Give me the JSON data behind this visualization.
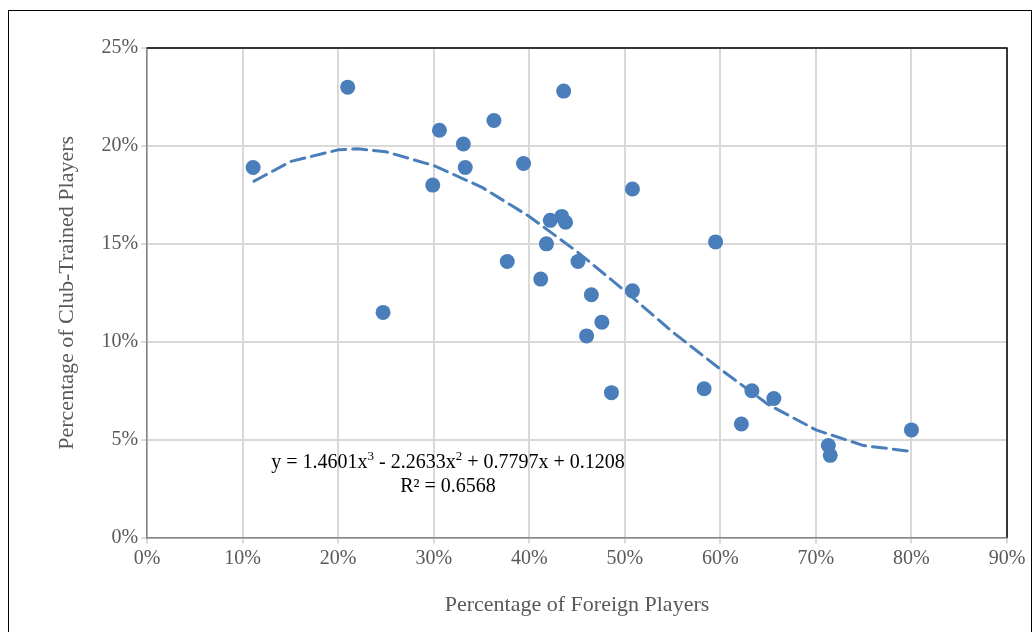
{
  "chart_data": {
    "type": "scatter",
    "xlabel": "Percentage of Foreign Players",
    "ylabel": "Percentage of Club-Trained Players",
    "xlim": [
      0,
      90
    ],
    "xticks": [
      {
        "value": 0,
        "label": "0%"
      },
      {
        "value": 10,
        "label": "10%"
      },
      {
        "value": 20,
        "label": "20%"
      },
      {
        "value": 30,
        "label": "30%"
      },
      {
        "value": 40,
        "label": "40%"
      },
      {
        "value": 50,
        "label": "50%"
      },
      {
        "value": 60,
        "label": "60%"
      },
      {
        "value": 70,
        "label": "70%"
      },
      {
        "value": 80,
        "label": "80%"
      },
      {
        "value": 90,
        "label": "90%"
      }
    ],
    "ylim": [
      0,
      25
    ],
    "yticks": [
      {
        "value": 0,
        "label": "0%"
      },
      {
        "value": 5,
        "label": "5%"
      },
      {
        "value": 10,
        "label": "10%"
      },
      {
        "value": 15,
        "label": "15%"
      },
      {
        "value": 20,
        "label": "20%"
      },
      {
        "value": 25,
        "label": "25%"
      }
    ],
    "grid": true,
    "legend": false,
    "marker": "circle",
    "series": [
      {
        "color": "#4a7ebb",
        "x": [
          11.1,
          21.0,
          24.7,
          29.9,
          30.6,
          33.1,
          33.3,
          36.3,
          37.7,
          39.4,
          41.2,
          41.8,
          42.2,
          43.4,
          43.6,
          43.8,
          45.1,
          46.5,
          46.0,
          47.6,
          48.6,
          50.8,
          50.8,
          58.3,
          59.5,
          62.2,
          63.3,
          65.6,
          71.3,
          71.5,
          80.0
        ],
        "values": [
          18.9,
          23.0,
          11.5,
          18.0,
          20.8,
          20.1,
          18.9,
          21.3,
          14.1,
          19.1,
          13.2,
          15.0,
          16.2,
          16.4,
          22.8,
          16.1,
          14.1,
          12.4,
          10.3,
          11.0,
          7.4,
          17.8,
          12.6,
          7.6,
          15.1,
          5.8,
          7.5,
          7.1,
          4.7,
          4.2,
          5.5
        ]
      },
      {
        "type": "line",
        "color": "#4a7ebb",
        "line_style": "dashed",
        "marker": "none",
        "x": [
          11.2,
          15,
          20,
          22,
          25,
          30,
          35,
          40,
          45,
          50,
          55,
          60,
          65,
          70,
          75,
          80
        ],
        "values": [
          18.2,
          19.2,
          19.8,
          19.85,
          19.7,
          19.0,
          17.9,
          16.4,
          14.6,
          12.6,
          10.5,
          8.6,
          6.8,
          5.5,
          4.7,
          4.4
        ]
      }
    ],
    "annotations": [
      "y = 1.4601x$^{3}$ - 2.2633x$^{2}$ + 0.7797x + 0.1208",
      "R² = 0.6568"
    ]
  }
}
